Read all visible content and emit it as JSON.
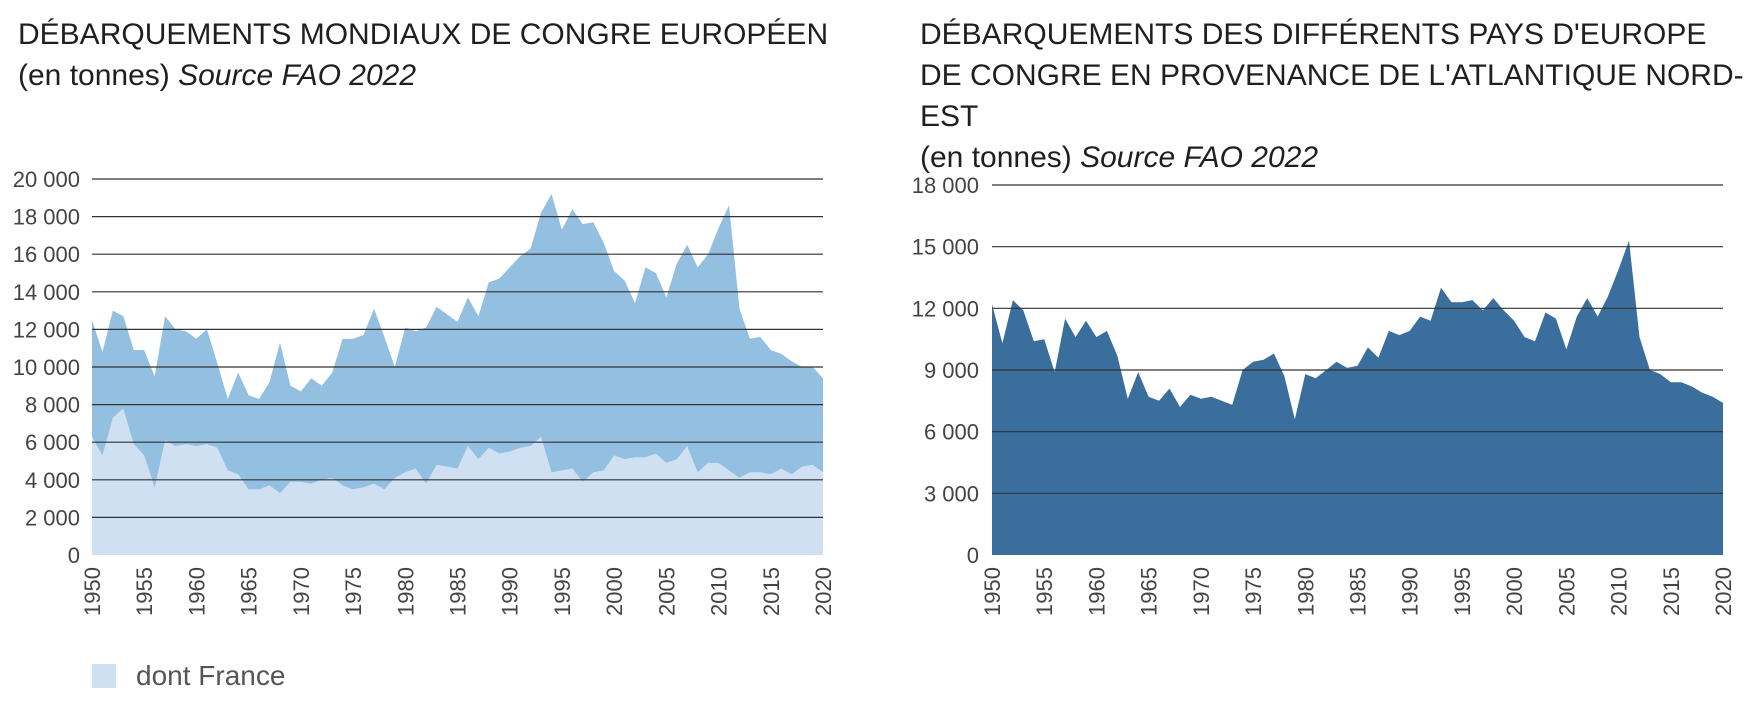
{
  "colors": {
    "world_area": "#93bfe0",
    "france_area": "#cfe0f3",
    "europe_area": "#3a6e9c",
    "grid": "#333333"
  },
  "chart_data": [
    {
      "type": "area",
      "title": "DÉBARQUEMENTS MONDIAUX DE CONGRE EUROPÉEN",
      "subtitle_prefix": "(en tonnes)",
      "subtitle_source": "Source FAO 2022",
      "xlabel": "",
      "ylabel": "",
      "ylim": [
        0,
        20000
      ],
      "y_ticks": [
        0,
        2000,
        4000,
        6000,
        8000,
        10000,
        12000,
        14000,
        16000,
        18000,
        20000
      ],
      "y_tick_labels": [
        "0",
        "2 000",
        "4 000",
        "6 000",
        "8 000",
        "10 000",
        "12 000",
        "14 000",
        "16 000",
        "18 000",
        "20 000"
      ],
      "x_ticks": [
        1950,
        1955,
        1960,
        1965,
        1970,
        1975,
        1980,
        1985,
        1990,
        1995,
        2000,
        2005,
        2010,
        2015,
        2020
      ],
      "grid": true,
      "legend_position": "bottom-left",
      "x": [
        1950,
        1951,
        1952,
        1953,
        1954,
        1955,
        1956,
        1957,
        1958,
        1959,
        1960,
        1961,
        1962,
        1963,
        1964,
        1965,
        1966,
        1967,
        1968,
        1969,
        1970,
        1971,
        1972,
        1973,
        1974,
        1975,
        1976,
        1977,
        1978,
        1979,
        1980,
        1981,
        1982,
        1983,
        1984,
        1985,
        1986,
        1987,
        1988,
        1989,
        1990,
        1991,
        1992,
        1993,
        1994,
        1995,
        1996,
        1997,
        1998,
        1999,
        2000,
        2001,
        2002,
        2003,
        2004,
        2005,
        2006,
        2007,
        2008,
        2009,
        2010,
        2011,
        2012,
        2013,
        2014,
        2015,
        2016,
        2017,
        2018,
        2019,
        2020
      ],
      "series": [
        {
          "key": "total",
          "values": [
            12500,
            10800,
            13000,
            12700,
            10900,
            10900,
            9500,
            12700,
            12000,
            11900,
            11500,
            12000,
            10200,
            8300,
            9700,
            8500,
            8300,
            9200,
            11300,
            9000,
            8700,
            9400,
            9000,
            9700,
            11500,
            11500,
            11700,
            13100,
            11600,
            10000,
            12100,
            11900,
            12100,
            13200,
            12800,
            12400,
            13700,
            12700,
            14500,
            14700,
            15300,
            15900,
            16300,
            18200,
            19200,
            17300,
            18400,
            17600,
            17700,
            16600,
            15100,
            14600,
            13400,
            15300,
            15000,
            13700,
            15500,
            16500,
            15300,
            16000,
            17400,
            18600,
            13100,
            11500,
            11600,
            10900,
            10700,
            10300,
            10000,
            10000,
            9400
          ]
        },
        {
          "key": "france",
          "name": "dont France",
          "values": [
            6300,
            5300,
            7300,
            7800,
            5900,
            5300,
            3600,
            6100,
            5800,
            5900,
            5800,
            5900,
            5700,
            4500,
            4300,
            3500,
            3500,
            3700,
            3300,
            3900,
            3900,
            3800,
            4000,
            4100,
            3700,
            3500,
            3600,
            3800,
            3500,
            4100,
            4400,
            4600,
            3800,
            4800,
            4700,
            4600,
            5800,
            5100,
            5700,
            5400,
            5500,
            5700,
            5800,
            6300,
            4400,
            4500,
            4600,
            3900,
            4400,
            4500,
            5300,
            5100,
            5200,
            5200,
            5400,
            4900,
            5100,
            5800,
            4400,
            4900,
            4900,
            4500,
            4100,
            4400,
            4400,
            4300,
            4600,
            4300,
            4700,
            4800,
            4400
          ]
        }
      ]
    },
    {
      "type": "area",
      "title": "DÉBARQUEMENTS DES DIFFÉRENTS PAYS D'EUROPE DE CONGRE EN PROVENANCE DE L'ATLANTIQUE NORD-EST",
      "subtitle_prefix": "(en tonnes)",
      "subtitle_source": "Source FAO 2022",
      "xlabel": "",
      "ylabel": "",
      "ylim": [
        0,
        18000
      ],
      "y_ticks": [
        0,
        3000,
        6000,
        9000,
        12000,
        15000,
        18000
      ],
      "y_tick_labels": [
        "0",
        "3 000",
        "6 000",
        "9 000",
        "12 000",
        "15 000",
        "18 000"
      ],
      "x_ticks": [
        1950,
        1955,
        1960,
        1965,
        1970,
        1975,
        1980,
        1985,
        1990,
        1995,
        2000,
        2005,
        2010,
        2015,
        2020
      ],
      "grid": true,
      "x": [
        1950,
        1951,
        1952,
        1953,
        1954,
        1955,
        1956,
        1957,
        1958,
        1959,
        1960,
        1961,
        1962,
        1963,
        1964,
        1965,
        1966,
        1967,
        1968,
        1969,
        1970,
        1971,
        1972,
        1973,
        1974,
        1975,
        1976,
        1977,
        1978,
        1979,
        1980,
        1981,
        1982,
        1983,
        1984,
        1985,
        1986,
        1987,
        1988,
        1989,
        1990,
        1991,
        1992,
        1993,
        1994,
        1995,
        1996,
        1997,
        1998,
        1999,
        2000,
        2001,
        2002,
        2003,
        2004,
        2005,
        2006,
        2007,
        2008,
        2009,
        2010,
        2011,
        2012,
        2013,
        2014,
        2015,
        2016,
        2017,
        2018,
        2019,
        2020
      ],
      "series": [
        {
          "key": "europe",
          "values": [
            12200,
            10300,
            12400,
            11900,
            10400,
            10500,
            8900,
            11500,
            10600,
            11400,
            10600,
            10900,
            9700,
            7600,
            8900,
            7700,
            7500,
            8100,
            7200,
            7800,
            7600,
            7700,
            7500,
            7300,
            9000,
            9400,
            9500,
            9800,
            8700,
            6600,
            8800,
            8600,
            9000,
            9400,
            9100,
            9200,
            10100,
            9600,
            10900,
            10700,
            10900,
            11600,
            11400,
            13000,
            12300,
            12300,
            12400,
            11900,
            12500,
            11900,
            11400,
            10600,
            10400,
            11800,
            11500,
            10000,
            11600,
            12500,
            11600,
            12600,
            13900,
            15300,
            10600,
            9000,
            8800,
            8400,
            8400,
            8200,
            7900,
            7700,
            7400
          ]
        }
      ]
    }
  ]
}
